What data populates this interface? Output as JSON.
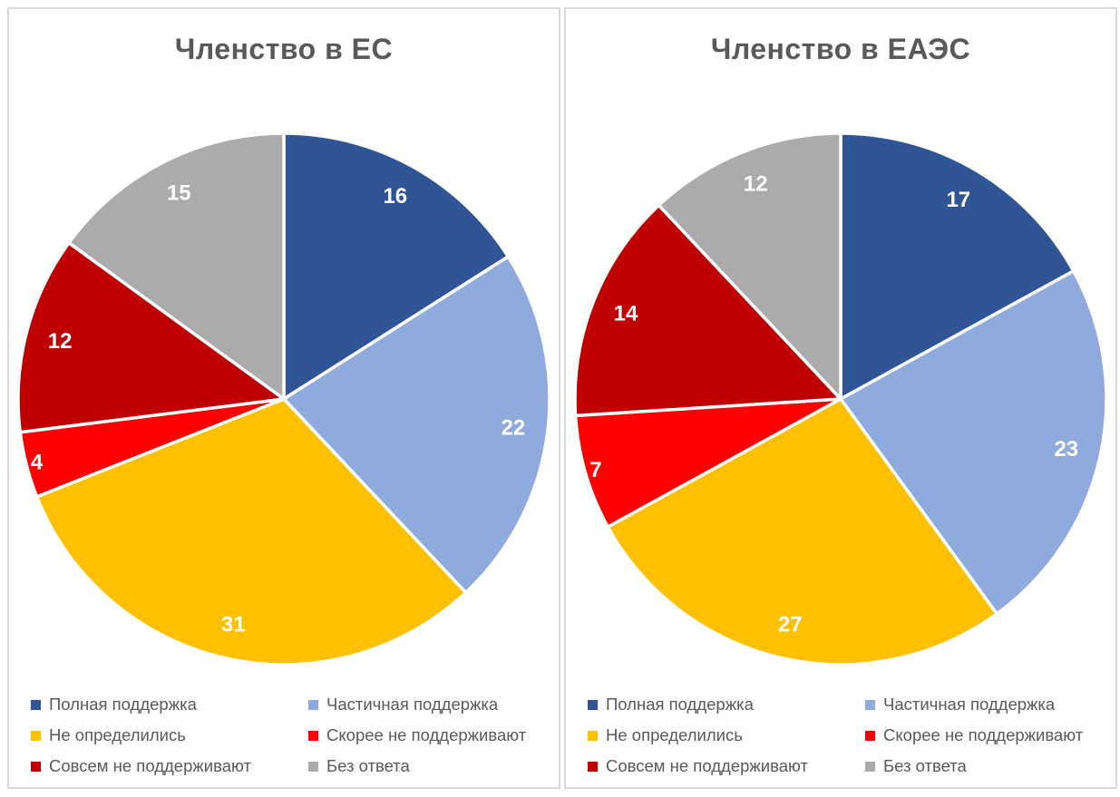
{
  "page": {
    "background": "#FFFFFF",
    "panel_border_color": "#D9D9D9",
    "title_color": "#595959",
    "legend_text_color": "#595959",
    "data_label_color": "#FFFFFF"
  },
  "chart_data": [
    {
      "type": "pie",
      "title": "Членство в ЕС",
      "categories": [
        "Полная поддержка",
        "Частичная поддержка",
        "Не определились",
        "Скорее не поддерживают",
        "Совсем не поддерживают",
        "Без ответа"
      ],
      "values": [
        16,
        22,
        31,
        4,
        12,
        15
      ],
      "colors": [
        "#2F5597",
        "#8FAADC",
        "#FFC000",
        "#FF0000",
        "#C00000",
        "#ABABAB"
      ],
      "start_angle_deg": 0,
      "direction": "clockwise",
      "data_labels": "values shown inside-end, white bold",
      "legend_position": "bottom"
    },
    {
      "type": "pie",
      "title": "Членство в ЕАЭС",
      "categories": [
        "Полная поддержка",
        "Частичная поддержка",
        "Не определились",
        "Скорее не поддерживают",
        "Совсем не поддерживают",
        "Без ответа"
      ],
      "values": [
        17,
        23,
        27,
        7,
        14,
        12
      ],
      "colors": [
        "#2F5597",
        "#8FAADC",
        "#FFC000",
        "#FF0000",
        "#C00000",
        "#ABABAB"
      ],
      "start_angle_deg": 0,
      "direction": "clockwise",
      "data_labels": "values shown inside-end, white bold",
      "legend_position": "bottom"
    }
  ]
}
